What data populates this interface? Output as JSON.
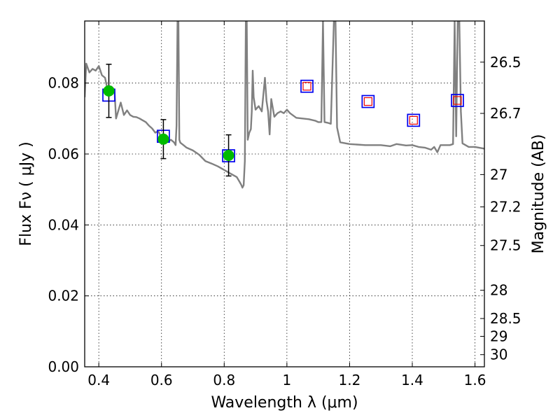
{
  "chart_data": {
    "type": "scatter",
    "xlabel": "Wavelength  λ (μm)",
    "ylabel": "Flux  Fν  ( μJy )",
    "y2label": "Magnitude (AB)",
    "xlim": [
      0.355,
      1.63
    ],
    "ylim": [
      0.0,
      0.0975
    ],
    "grid": true,
    "xticks": [
      0.4,
      0.6,
      0.8,
      1.0,
      1.2,
      1.4,
      1.6
    ],
    "xtick_labels": [
      "0.4",
      "0.6",
      "0.8",
      "1",
      "1.2",
      "1.4",
      "1.6"
    ],
    "yticks": [
      0.0,
      0.02,
      0.04,
      0.06,
      0.08
    ],
    "ytick_labels": [
      "0.00",
      "0.02",
      "0.04",
      "0.06",
      "0.08"
    ],
    "y2ticks": [
      26.5,
      26.7,
      27,
      27.2,
      27.5,
      28,
      28.5,
      29,
      30
    ],
    "y2tick_labels": [
      "26.5",
      "26.7",
      "27",
      "27.2",
      "27.5",
      "28",
      "28.5",
      "29",
      "30"
    ],
    "colors": {
      "template": "#808080",
      "observed": "#00bb00",
      "model_box": "#0000ee",
      "model_box_nir": "#ee0000",
      "errorbar": "#000000"
    },
    "template_sed": {
      "x": [
        0.355,
        0.36,
        0.365,
        0.37,
        0.38,
        0.39,
        0.4,
        0.41,
        0.42,
        0.43,
        0.44,
        0.45,
        0.455,
        0.46,
        0.47,
        0.48,
        0.49,
        0.5,
        0.51,
        0.52,
        0.53,
        0.54,
        0.55,
        0.56,
        0.57,
        0.58,
        0.59,
        0.6,
        0.61,
        0.62,
        0.63,
        0.64,
        0.645,
        0.648,
        0.651,
        0.654,
        0.657,
        0.66,
        0.67,
        0.68,
        0.7,
        0.72,
        0.74,
        0.76,
        0.78,
        0.8,
        0.82,
        0.84,
        0.85,
        0.855,
        0.858,
        0.862,
        0.866,
        0.869,
        0.872,
        0.875,
        0.88,
        0.885,
        0.888,
        0.891,
        0.894,
        0.9,
        0.91,
        0.92,
        0.93,
        0.935,
        0.94,
        0.945,
        0.95,
        0.96,
        0.97,
        0.98,
        0.99,
        1.0,
        1.01,
        1.03,
        1.05,
        1.07,
        1.09,
        1.1,
        1.11,
        1.115,
        1.12,
        1.13,
        1.14,
        1.15,
        1.155,
        1.16,
        1.17,
        1.2,
        1.25,
        1.3,
        1.33,
        1.35,
        1.38,
        1.4,
        1.42,
        1.44,
        1.46,
        1.47,
        1.48,
        1.49,
        1.5,
        1.52,
        1.53,
        1.535,
        1.54,
        1.545,
        1.55,
        1.555,
        1.56,
        1.58,
        1.6,
        1.63
      ],
      "y": [
        0.076,
        0.0855,
        0.0842,
        0.083,
        0.084,
        0.0835,
        0.0848,
        0.0822,
        0.0815,
        0.0772,
        0.079,
        0.0781,
        0.07,
        0.0715,
        0.0745,
        0.071,
        0.0723,
        0.071,
        0.0705,
        0.0704,
        0.07,
        0.0695,
        0.069,
        0.068,
        0.0672,
        0.066,
        0.0665,
        0.0645,
        0.064,
        0.0635,
        0.064,
        0.0633,
        0.0625,
        0.068,
        0.0975,
        0.0975,
        0.064,
        0.0632,
        0.0625,
        0.0618,
        0.061,
        0.0598,
        0.058,
        0.0573,
        0.0565,
        0.0555,
        0.0545,
        0.0535,
        0.052,
        0.0512,
        0.0505,
        0.0512,
        0.058,
        0.0975,
        0.0975,
        0.064,
        0.066,
        0.067,
        0.072,
        0.0835,
        0.076,
        0.0725,
        0.0735,
        0.072,
        0.0815,
        0.075,
        0.072,
        0.0655,
        0.0755,
        0.0705,
        0.0715,
        0.072,
        0.0715,
        0.0725,
        0.0715,
        0.0702,
        0.07,
        0.0698,
        0.0694,
        0.069,
        0.069,
        0.0975,
        0.069,
        0.0688,
        0.0685,
        0.0975,
        0.0975,
        0.0675,
        0.0633,
        0.0628,
        0.0625,
        0.0625,
        0.0622,
        0.0628,
        0.0624,
        0.0625,
        0.062,
        0.0618,
        0.0612,
        0.062,
        0.0605,
        0.0625,
        0.0625,
        0.0625,
        0.0628,
        0.0975,
        0.065,
        0.0975,
        0.0975,
        0.072,
        0.063,
        0.062,
        0.062,
        0.0615
      ]
    },
    "observed_points": [
      {
        "x": 0.432,
        "y": 0.0778,
        "yerr": 0.0075
      },
      {
        "x": 0.606,
        "y": 0.0642,
        "yerr": 0.0055
      },
      {
        "x": 0.814,
        "y": 0.0596,
        "yerr": 0.0058
      }
    ],
    "model_boxes": [
      {
        "x": 0.432,
        "y": 0.0766
      },
      {
        "x": 0.606,
        "y": 0.065
      },
      {
        "x": 0.814,
        "y": 0.0595
      }
    ],
    "model_boxes_nir": [
      {
        "x": 1.064,
        "y": 0.0791
      },
      {
        "x": 1.259,
        "y": 0.0748
      },
      {
        "x": 1.404,
        "y": 0.0695
      },
      {
        "x": 1.544,
        "y": 0.0751
      }
    ]
  }
}
